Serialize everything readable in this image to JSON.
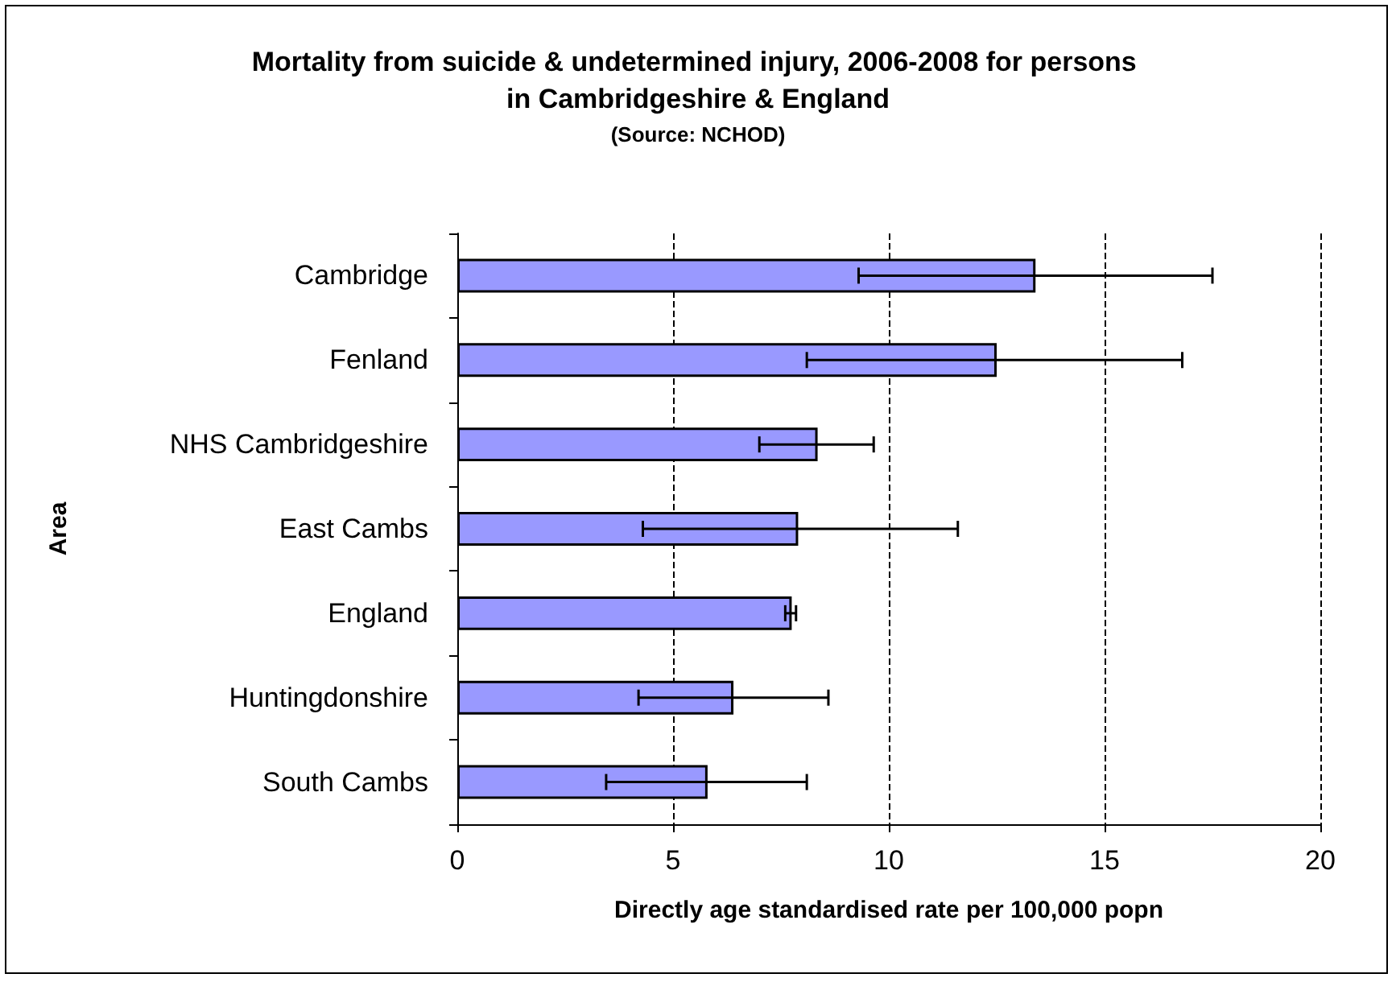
{
  "chart_data": {
    "type": "bar",
    "orientation": "horizontal",
    "title": "Mortality from suicide & undetermined injury, 2006-2008 for persons in Cambridgeshire & England",
    "subtitle": "(Source: NCHOD)",
    "xlabel": "Directly age standardised rate per 100,000 popn",
    "ylabel": "Area",
    "categories": [
      "Cambridge",
      "Fenland",
      "NHS Cambridgeshire",
      "East Cambs",
      "England",
      "Huntingdonshire",
      "South Cambs"
    ],
    "values": [
      13.4,
      12.5,
      8.35,
      7.9,
      7.75,
      6.4,
      5.8
    ],
    "errors": [
      [
        9.3,
        17.5
      ],
      [
        8.1,
        16.8
      ],
      [
        7.0,
        9.65
      ],
      [
        4.3,
        11.6
      ],
      [
        7.6,
        7.85
      ],
      [
        4.2,
        8.6
      ],
      [
        3.45,
        8.1
      ]
    ],
    "color": "#9999ff",
    "xlim": [
      0,
      20
    ],
    "xticks": [
      0,
      5,
      10,
      15,
      20
    ],
    "grid": "x"
  }
}
